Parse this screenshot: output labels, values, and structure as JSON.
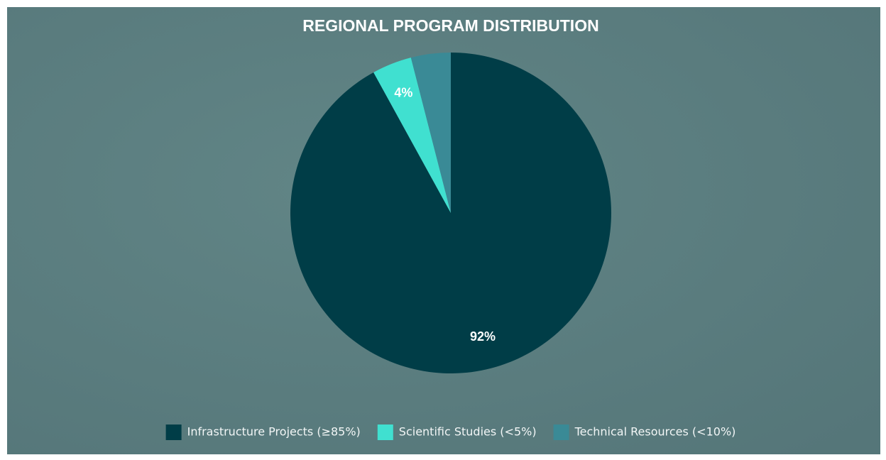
{
  "chart_data": {
    "type": "pie",
    "title": "REGIONAL PROGRAM DISTRIBUTION",
    "categories": [
      "Infrastructure Projects (≥85%)",
      "Scientific Studies (<5%)",
      "Technical Resources (<10%)"
    ],
    "values": [
      92,
      4,
      4
    ],
    "value_labels": [
      "92%",
      "4%",
      null
    ],
    "colors": [
      "#003d47",
      "#40e0d0",
      "#3a8a96"
    ],
    "legend": "bottom"
  }
}
